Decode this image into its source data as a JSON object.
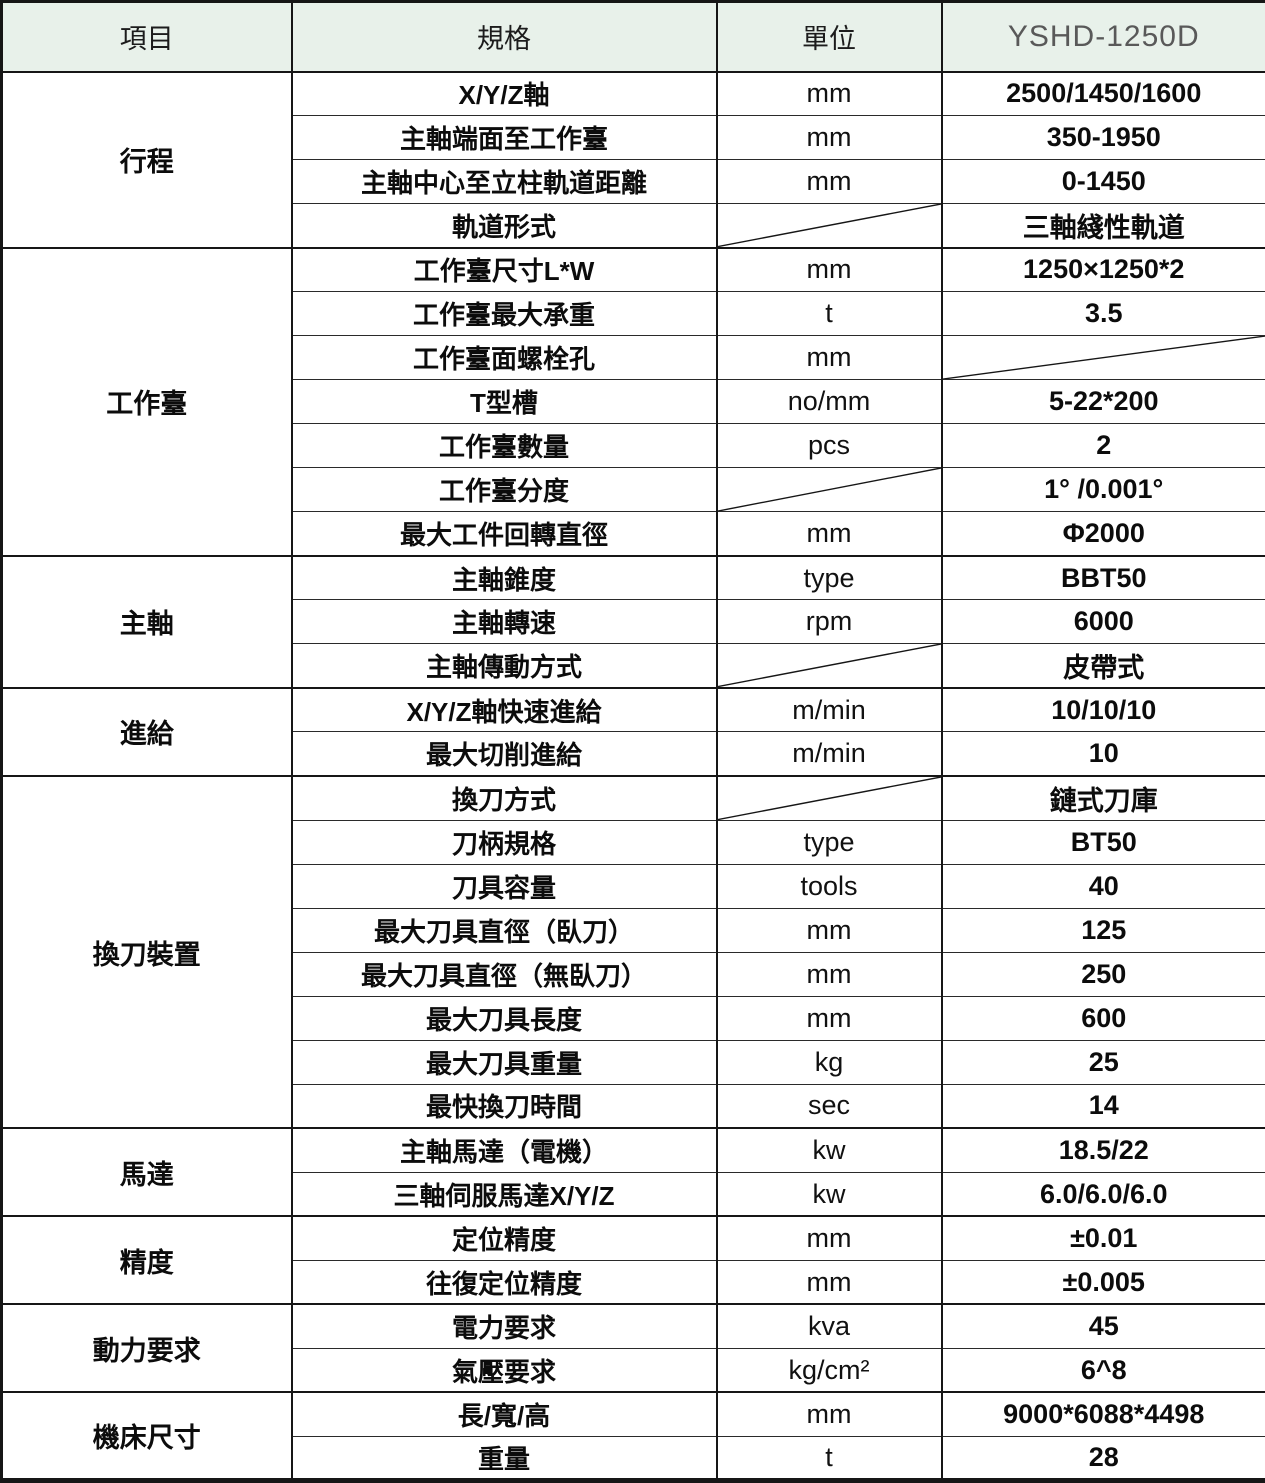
{
  "colors": {
    "header_bg": "#e8f1ea",
    "grid": "#161616",
    "model_header_text": "#595959"
  },
  "header": {
    "item_label": "項目",
    "spec_label": "規格",
    "unit_label": "單位",
    "model_label": "YSHD-1250D"
  },
  "sections": [
    {
      "item": "行程",
      "rows": [
        {
          "spec": "X/Y/Z軸",
          "unit": "mm",
          "value": "2500/1450/1600"
        },
        {
          "spec": "主軸端面至工作臺",
          "unit": "mm",
          "value": "350-1950"
        },
        {
          "spec": "主軸中心至立柱軌道距離",
          "unit": "mm",
          "value": "0-1450"
        },
        {
          "spec": "軌道形式",
          "unit": "",
          "unit_slash": true,
          "value": "三軸綫性軌道"
        }
      ]
    },
    {
      "item": "工作臺",
      "rows": [
        {
          "spec": "工作臺尺寸L*W",
          "unit": "mm",
          "value": "1250×1250*2"
        },
        {
          "spec": "工作臺最大承重",
          "unit": "t",
          "value": "3.5"
        },
        {
          "spec": "工作臺面螺栓孔",
          "unit": "mm",
          "value": "",
          "value_slash": true
        },
        {
          "spec": "T型槽",
          "unit": "no/mm",
          "value": "5-22*200"
        },
        {
          "spec": "工作臺數量",
          "unit": "pcs",
          "value": "2"
        },
        {
          "spec": "工作臺分度",
          "unit": "",
          "unit_slash": true,
          "value": "1° /0.001°"
        },
        {
          "spec": "最大工件回轉直徑",
          "unit": "mm",
          "value": "Φ2000"
        }
      ]
    },
    {
      "item": "主軸",
      "rows": [
        {
          "spec": "主軸錐度",
          "unit": "type",
          "value": "BBT50"
        },
        {
          "spec": "主軸轉速",
          "unit": "rpm",
          "value": "6000"
        },
        {
          "spec": "主軸傳動方式",
          "unit": "",
          "unit_slash": true,
          "value": "皮帶式"
        }
      ]
    },
    {
      "item": "進給",
      "rows": [
        {
          "spec": "X/Y/Z軸快速進給",
          "unit": "m/min",
          "value": "10/10/10"
        },
        {
          "spec": "最大切削進給",
          "unit": "m/min",
          "value": "10"
        }
      ]
    },
    {
      "item": "換刀裝置",
      "rows": [
        {
          "spec": "換刀方式",
          "unit": "",
          "unit_slash": true,
          "value": "鏈式刀庫"
        },
        {
          "spec": "刀柄規格",
          "unit": "type",
          "value": "BT50"
        },
        {
          "spec": "刀具容量",
          "unit": "tools",
          "value": "40"
        },
        {
          "spec": "最大刀具直徑（臥刀）",
          "unit": "mm",
          "value": "125"
        },
        {
          "spec": "最大刀具直徑（無臥刀）",
          "unit": "mm",
          "value": "250"
        },
        {
          "spec": "最大刀具長度",
          "unit": "mm",
          "value": "600"
        },
        {
          "spec": "最大刀具重量",
          "unit": "kg",
          "value": "25"
        },
        {
          "spec": "最快換刀時間",
          "unit": "sec",
          "value": "14"
        }
      ]
    },
    {
      "item": "馬達",
      "rows": [
        {
          "spec": "主軸馬達（電機）",
          "unit": "kw",
          "value": "18.5/22"
        },
        {
          "spec": "三軸伺服馬達X/Y/Z",
          "unit": "kw",
          "value": "6.0/6.0/6.0"
        }
      ]
    },
    {
      "item": "精度",
      "rows": [
        {
          "spec": "定位精度",
          "unit": "mm",
          "value": "±0.01"
        },
        {
          "spec": "往復定位精度",
          "unit": "mm",
          "value": "±0.005"
        }
      ]
    },
    {
      "item": "動力要求",
      "rows": [
        {
          "spec": "電力要求",
          "unit": "kva",
          "value": "45"
        },
        {
          "spec": "氣壓要求",
          "unit": "kg/cm²",
          "value": "6^8"
        }
      ]
    },
    {
      "item": "機床尺寸",
      "rows": [
        {
          "spec": "長/寬/高",
          "unit": "mm",
          "value": "9000*6088*4498"
        },
        {
          "spec": "重量",
          "unit": "t",
          "value": "28"
        }
      ]
    }
  ]
}
